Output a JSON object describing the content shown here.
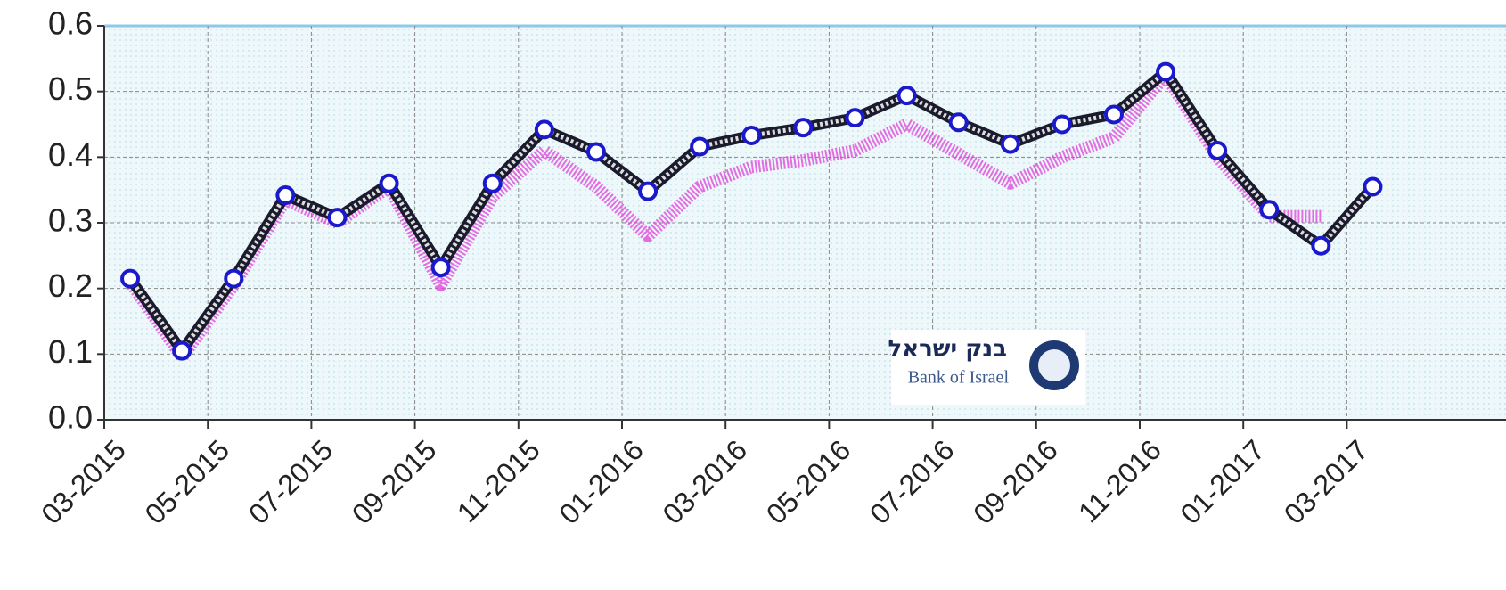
{
  "chart_data": {
    "type": "line",
    "categories": [
      "03-2015",
      null,
      "05-2015",
      null,
      "07-2015",
      null,
      "09-2015",
      null,
      "11-2015",
      null,
      "01-2016",
      null,
      "03-2016",
      null,
      "05-2016",
      null,
      "07-2016",
      null,
      "09-2016",
      null,
      "11-2016",
      null,
      "01-2017",
      null,
      "03-2017"
    ],
    "series": [
      {
        "color": "#e040d8",
        "values": [
          0.21,
          0.095,
          0.205,
          0.335,
          0.3,
          0.355,
          0.205,
          0.34,
          0.41,
          0.355,
          0.28,
          0.355,
          0.385,
          0.395,
          0.41,
          0.45,
          0.405,
          0.36,
          0.4,
          0.43,
          0.525,
          0.4,
          0.31,
          0.31,
          null
        ]
      },
      {
        "color": "#1a1acc",
        "values": [
          0.215,
          0.105,
          0.215,
          0.342,
          0.308,
          0.36,
          0.232,
          0.36,
          0.442,
          0.408,
          0.348,
          0.416,
          0.433,
          0.445,
          0.46,
          0.494,
          0.453,
          0.42,
          0.45,
          0.465,
          0.53,
          0.41,
          0.32,
          0.265,
          0.355
        ]
      }
    ],
    "ylim": [
      0,
      0.6
    ],
    "yticks": [
      {
        "value": 0,
        "label": "0.0"
      },
      0.1,
      0.2,
      0.3,
      0.4,
      0.5,
      0.6
    ],
    "grid": true
  },
  "logo": {
    "hebrew": "בנק ישראל",
    "english": "Bank of Israel"
  }
}
